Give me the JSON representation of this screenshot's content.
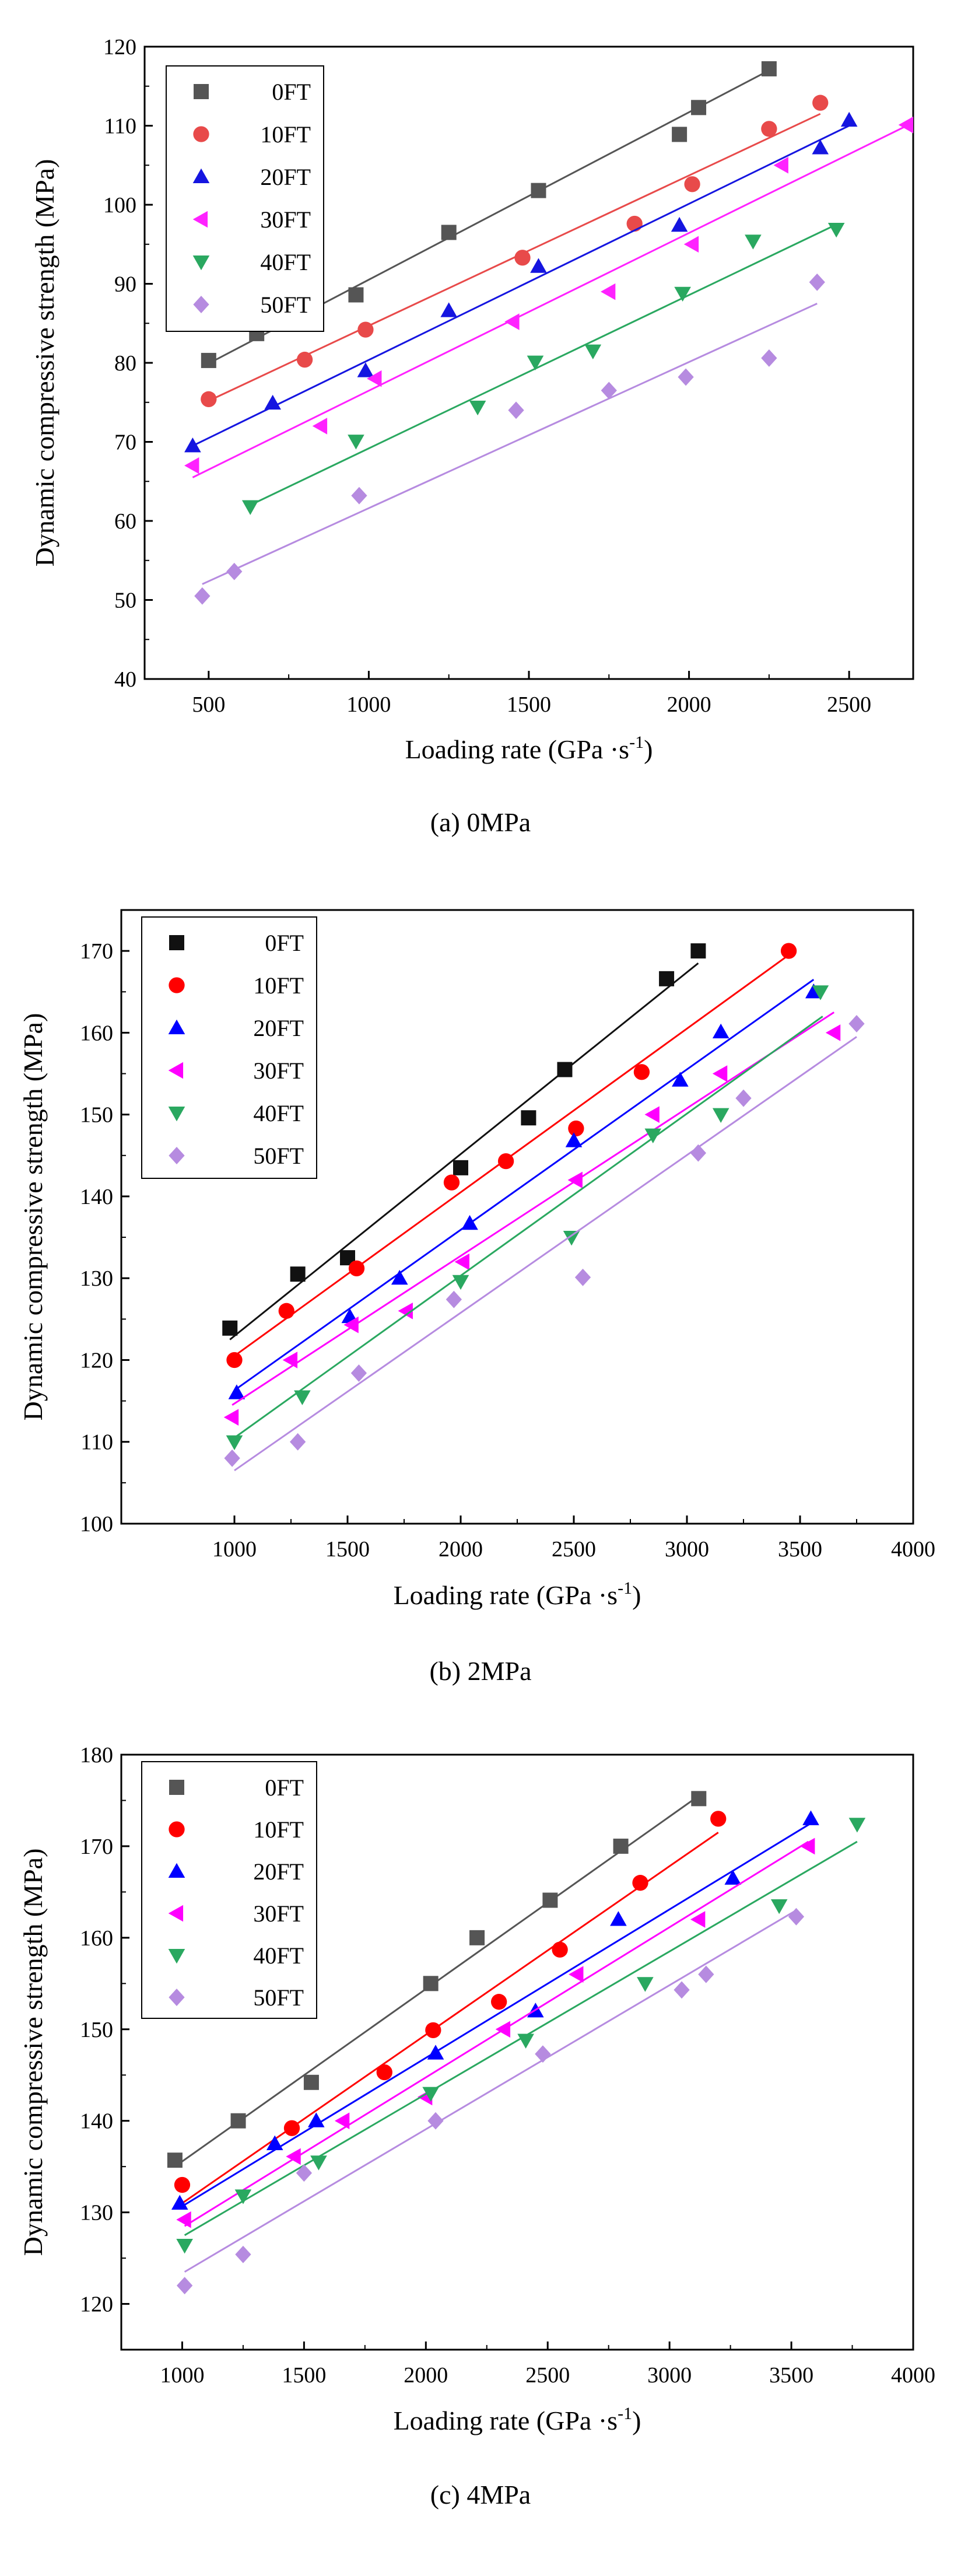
{
  "chart_data": [
    {
      "type": "scatter",
      "caption": "(a) 0MPa",
      "xlabel": "Loading rate (GPa",
      "ylabel": "Dynamic compressive strength (MPa)",
      "xlim": [
        300,
        2700
      ],
      "ylim": [
        40,
        120
      ],
      "xticks": [
        "500",
        "1000",
        "1500",
        "2000",
        "2500"
      ],
      "yticks": [
        "40",
        "50",
        "60",
        "70",
        "80",
        "90",
        "100",
        "110",
        "120"
      ],
      "legend_position": "top-left",
      "series": [
        {
          "name": "0FT",
          "marker": "square",
          "color": "#555555",
          "points": [
            [
              500,
              80.3
            ],
            [
              650,
              83.7
            ],
            [
              960,
              88.6
            ],
            [
              1250,
              96.5
            ],
            [
              1530,
              101.8
            ],
            [
              1970,
              108.9
            ],
            [
              2030,
              112.3
            ],
            [
              2250,
              117.2
            ]
          ],
          "fit": [
            [
              480,
              79.5
            ],
            [
              2250,
              117.0
            ]
          ]
        },
        {
          "name": "10FT",
          "marker": "circle",
          "color": "#e84a4a",
          "points": [
            [
              500,
              75.4
            ],
            [
              800,
              80.4
            ],
            [
              990,
              84.2
            ],
            [
              1480,
              93.3
            ],
            [
              1830,
              97.6
            ],
            [
              2010,
              102.6
            ],
            [
              2250,
              109.6
            ],
            [
              2410,
              112.9
            ]
          ],
          "fit": [
            [
              490,
              75.0
            ],
            [
              2410,
              111.5
            ]
          ]
        },
        {
          "name": "20FT",
          "marker": "triangle-up",
          "color": "#1515e0",
          "points": [
            [
              450,
              69.5
            ],
            [
              700,
              74.9
            ],
            [
              990,
              79.0
            ],
            [
              1250,
              86.6
            ],
            [
              1530,
              92.2
            ],
            [
              1970,
              97.4
            ],
            [
              2410,
              107.2
            ],
            [
              2500,
              110.7
            ]
          ],
          "fit": [
            [
              450,
              69.5
            ],
            [
              2500,
              110.0
            ]
          ]
        },
        {
          "name": "30FT",
          "marker": "triangle-left",
          "color": "#ff22ff",
          "points": [
            [
              450,
              67.0
            ],
            [
              850,
              72.0
            ],
            [
              1020,
              78.0
            ],
            [
              1450,
              85.2
            ],
            [
              1750,
              89.0
            ],
            [
              2010,
              95.0
            ],
            [
              2290,
              105.0
            ],
            [
              2680,
              110.1
            ]
          ],
          "fit": [
            [
              450,
              65.5
            ],
            [
              2680,
              110.0
            ]
          ]
        },
        {
          "name": "40FT",
          "marker": "triangle-down",
          "color": "#2aa860",
          "points": [
            [
              630,
              61.8
            ],
            [
              960,
              70.1
            ],
            [
              1340,
              74.4
            ],
            [
              1520,
              80.1
            ],
            [
              1700,
              81.5
            ],
            [
              1980,
              88.8
            ],
            [
              2200,
              95.4
            ],
            [
              2460,
              96.9
            ]
          ],
          "fit": [
            [
              630,
              62.0
            ],
            [
              2460,
              97.5
            ]
          ]
        },
        {
          "name": "50FT",
          "marker": "diamond",
          "color": "#b68be0",
          "points": [
            [
              480,
              50.5
            ],
            [
              580,
              53.6
            ],
            [
              970,
              63.2
            ],
            [
              1460,
              74.0
            ],
            [
              1750,
              76.5
            ],
            [
              1990,
              78.2
            ],
            [
              2250,
              80.6
            ],
            [
              2400,
              90.2
            ]
          ],
          "fit": [
            [
              480,
              52.0
            ],
            [
              2400,
              87.5
            ]
          ]
        }
      ]
    },
    {
      "type": "scatter",
      "caption": "(b) 2MPa",
      "xlabel": "Loading rate (GPa",
      "ylabel": "Dynamic compressive strength (MPa)",
      "xlim": [
        500,
        4000
      ],
      "ylim": [
        100,
        175
      ],
      "xticks": [
        "1000",
        "1500",
        "2000",
        "2500",
        "3000",
        "3500",
        "4000"
      ],
      "yticks": [
        "100",
        "110",
        "120",
        "130",
        "140",
        "150",
        "160",
        "170"
      ],
      "legend_position": "top-left",
      "series": [
        {
          "name": "0FT",
          "marker": "square",
          "color": "#111111",
          "points": [
            [
              980,
              123.9
            ],
            [
              1280,
              130.5
            ],
            [
              1500,
              132.5
            ],
            [
              2000,
              143.5
            ],
            [
              2300,
              149.6
            ],
            [
              2460,
              155.5
            ],
            [
              2910,
              166.6
            ],
            [
              3050,
              170.0
            ]
          ],
          "fit": [
            [
              980,
              122.5
            ],
            [
              3050,
              168.5
            ]
          ]
        },
        {
          "name": "10FT",
          "marker": "circle",
          "color": "#ff0000",
          "points": [
            [
              1000,
              120.0
            ],
            [
              1230,
              126.0
            ],
            [
              1540,
              131.2
            ],
            [
              1960,
              141.7
            ],
            [
              2200,
              144.3
            ],
            [
              2510,
              148.3
            ],
            [
              2800,
              155.2
            ],
            [
              3450,
              170.0
            ]
          ],
          "fit": [
            [
              1000,
              120.5
            ],
            [
              3450,
              169.5
            ]
          ]
        },
        {
          "name": "20FT",
          "marker": "triangle-up",
          "color": "#0000ff",
          "points": [
            [
              1010,
              116.0
            ],
            [
              1510,
              125.3
            ],
            [
              1730,
              130.0
            ],
            [
              2040,
              136.7
            ],
            [
              2500,
              146.8
            ],
            [
              2970,
              154.2
            ],
            [
              3150,
              160.1
            ],
            [
              3560,
              165.0
            ]
          ],
          "fit": [
            [
              1010,
              116.5
            ],
            [
              3560,
              166.5
            ]
          ]
        },
        {
          "name": "30FT",
          "marker": "triangle-left",
          "color": "#ff00ff",
          "points": [
            [
              990,
              113.0
            ],
            [
              1250,
              120.0
            ],
            [
              1520,
              124.3
            ],
            [
              1760,
              126.0
            ],
            [
              2010,
              132.0
            ],
            [
              2510,
              142.0
            ],
            [
              2850,
              150.0
            ],
            [
              3150,
              155.0
            ],
            [
              3650,
              160.0
            ]
          ],
          "fit": [
            [
              990,
              114.5
            ],
            [
              3650,
              162.5
            ]
          ]
        },
        {
          "name": "40FT",
          "marker": "triangle-down",
          "color": "#2aa860",
          "points": [
            [
              1000,
              110.0
            ],
            [
              1300,
              115.5
            ],
            [
              2000,
              129.6
            ],
            [
              2490,
              135.0
            ],
            [
              2850,
              147.5
            ],
            [
              3150,
              150.0
            ],
            [
              3590,
              165.0
            ]
          ],
          "fit": [
            [
              1000,
              110.5
            ],
            [
              3600,
              162.0
            ]
          ]
        },
        {
          "name": "50FT",
          "marker": "diamond",
          "color": "#b68be0",
          "points": [
            [
              990,
              108.0
            ],
            [
              1280,
              110.0
            ],
            [
              1550,
              118.4
            ],
            [
              1970,
              127.4
            ],
            [
              2540,
              130.1
            ],
            [
              3050,
              145.3
            ],
            [
              3250,
              152.0
            ],
            [
              3750,
              161.1
            ]
          ],
          "fit": [
            [
              1000,
              106.5
            ],
            [
              3750,
              159.5
            ]
          ]
        }
      ]
    },
    {
      "type": "scatter",
      "caption": "(c) 4MPa",
      "xlabel": "Loading rate (GPa",
      "ylabel": "Dynamic compressive strength (MPa)",
      "xlim": [
        750,
        4000
      ],
      "ylim": [
        115,
        180
      ],
      "xticks": [
        "1000",
        "1500",
        "2000",
        "2500",
        "3000",
        "3500",
        "4000"
      ],
      "yticks": [
        "120",
        "130",
        "140",
        "150",
        "160",
        "170",
        "180"
      ],
      "legend_position": "top-left",
      "series": [
        {
          "name": "0FT",
          "marker": "square",
          "color": "#555555",
          "points": [
            [
              970,
              135.7
            ],
            [
              1230,
              140.0
            ],
            [
              1530,
              144.2
            ],
            [
              2020,
              155.0
            ],
            [
              2210,
              160.0
            ],
            [
              2510,
              164.1
            ],
            [
              2800,
              170.0
            ],
            [
              3120,
              175.2
            ]
          ],
          "fit": [
            [
              970,
              135.0
            ],
            [
              3120,
              175.5
            ]
          ]
        },
        {
          "name": "10FT",
          "marker": "circle",
          "color": "#ff0000",
          "points": [
            [
              1000,
              133.0
            ],
            [
              1450,
              139.2
            ],
            [
              1830,
              145.3
            ],
            [
              2030,
              149.9
            ],
            [
              2300,
              153.0
            ],
            [
              2550,
              158.7
            ],
            [
              2880,
              166.0
            ],
            [
              3200,
              173.0
            ]
          ],
          "fit": [
            [
              1000,
              131.0
            ],
            [
              3200,
              171.5
            ]
          ]
        },
        {
          "name": "20FT",
          "marker": "triangle-up",
          "color": "#0000ff",
          "points": [
            [
              990,
              131.0
            ],
            [
              1380,
              137.5
            ],
            [
              1550,
              140.0
            ],
            [
              2040,
              147.4
            ],
            [
              2450,
              152.0
            ],
            [
              2790,
              162.0
            ],
            [
              3260,
              166.5
            ],
            [
              3580,
              173.0
            ]
          ],
          "fit": [
            [
              990,
              130.5
            ],
            [
              3580,
              172.5
            ]
          ]
        },
        {
          "name": "30FT",
          "marker": "triangle-left",
          "color": "#ff00ff",
          "points": [
            [
              1010,
              129.2
            ],
            [
              1460,
              136.1
            ],
            [
              1660,
              140.0
            ],
            [
              2000,
              142.6
            ],
            [
              2320,
              150.0
            ],
            [
              2620,
              156.0
            ],
            [
              3120,
              162.0
            ],
            [
              3570,
              170.0
            ]
          ],
          "fit": [
            [
              1010,
              128.5
            ],
            [
              3570,
              170.5
            ]
          ]
        },
        {
          "name": "40FT",
          "marker": "triangle-down",
          "color": "#2aa860",
          "points": [
            [
              1010,
              126.4
            ],
            [
              1250,
              131.8
            ],
            [
              1560,
              135.5
            ],
            [
              2020,
              143.0
            ],
            [
              2410,
              148.8
            ],
            [
              2900,
              155.0
            ],
            [
              3450,
              163.5
            ],
            [
              3770,
              172.4
            ]
          ],
          "fit": [
            [
              1010,
              127.5
            ],
            [
              3770,
              170.5
            ]
          ]
        },
        {
          "name": "50FT",
          "marker": "diamond",
          "color": "#b68be0",
          "points": [
            [
              1010,
              122.0
            ],
            [
              1250,
              125.4
            ],
            [
              1500,
              134.3
            ],
            [
              2040,
              140.0
            ],
            [
              2480,
              147.3
            ],
            [
              3050,
              154.3
            ],
            [
              3150,
              156.0
            ],
            [
              3520,
              162.3
            ]
          ],
          "fit": [
            [
              1010,
              123.5
            ],
            [
              3520,
              163.0
            ]
          ]
        }
      ]
    }
  ]
}
